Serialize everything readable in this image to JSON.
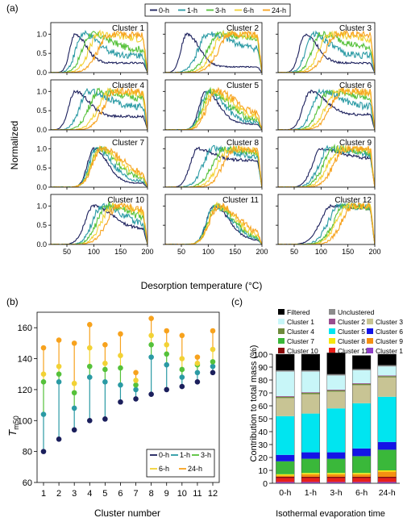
{
  "colors": {
    "0-h": "#1b1f5c",
    "1-h": "#2a9aa4",
    "3-h": "#55c13a",
    "6-h": "#f2d235",
    "24-h": "#f7a21d"
  },
  "panel_a": {
    "label": "(a)",
    "legend": [
      "0-h",
      "1-h",
      "3-h",
      "6-h",
      "24-h"
    ],
    "ylabel": "Normalized",
    "xlabel": "Desorption temperature (°C)",
    "x_ticks": [
      "50",
      "100",
      "150",
      "200"
    ],
    "y_ticks": [
      "0.0",
      "0.5",
      "1.0"
    ],
    "cluster_titles": [
      "Cluster 1",
      "Cluster 2",
      "Cluster 3",
      "Cluster 4",
      "Cluster 5",
      "Cluster 6",
      "Cluster 7",
      "Cluster 8",
      "Cluster 9",
      "Cluster 10",
      "Cluster 11",
      "Cluster 12"
    ]
  },
  "panel_b": {
    "label": "(b)",
    "ylabel_main": "T",
    "ylabel_sub": "m50",
    "xlabel": "Cluster number",
    "x_ticks": [
      "1",
      "2",
      "3",
      "4",
      "5",
      "6",
      "7",
      "8",
      "9",
      "10",
      "11",
      "12"
    ],
    "y_ticks": [
      "60",
      "80",
      "100",
      "120",
      "140",
      "160"
    ],
    "legend": [
      "0-h",
      "1-h",
      "3-h",
      "6-h",
      "24-h"
    ]
  },
  "panel_c": {
    "label": "(c)",
    "ylabel": "Contribution to total mass (%)",
    "xlabel": "Isothermal evaporation time",
    "x_ticks": [
      "0-h",
      "1-h",
      "3-h",
      "6-h",
      "24-h"
    ],
    "y_ticks": [
      "0",
      "10",
      "20",
      "30",
      "40",
      "50",
      "60",
      "70",
      "80",
      "90",
      "100"
    ],
    "legend": [
      "Filtered",
      "Unclustered",
      "Cluster 1",
      "Cluster 2",
      "Cluster 3",
      "Cluster 4",
      "Cluster 5",
      "Cluster 6",
      "Cluster 7",
      "Cluster 8",
      "Cluster 9",
      "Cluster 10",
      "Cluster 11",
      "Cluster 12"
    ]
  },
  "chart_data": [
    {
      "type": "line",
      "panel": "a",
      "description_note": "",
      "x_range": [
        20,
        200
      ],
      "ylim": [
        0,
        1.3
      ],
      "clusters": [
        {
          "name": "Cluster 1",
          "series": [
            {
              "name": "0-h",
              "peak": 65,
              "width": 18,
              "tail": 0.25
            },
            {
              "name": "1-h",
              "peak": 80,
              "width": 25,
              "tail": 0.45
            },
            {
              "name": "3-h",
              "peak": 95,
              "width": 30,
              "tail": 0.6
            },
            {
              "name": "6-h",
              "peak": 110,
              "width": 35,
              "tail": 0.85
            },
            {
              "name": "24-h",
              "peak": 130,
              "width": 40,
              "tail": 0.95
            }
          ]
        },
        {
          "name": "Cluster 2",
          "series": [
            {
              "name": "0-h",
              "peak": 60,
              "width": 20,
              "tail": 0.15
            },
            {
              "name": "1-h",
              "peak": 100,
              "width": 35,
              "tail": 0.6
            },
            {
              "name": "3-h",
              "peak": 120,
              "width": 40,
              "tail": 0.8
            },
            {
              "name": "6-h",
              "peak": 130,
              "width": 40,
              "tail": 0.9
            },
            {
              "name": "24-h",
              "peak": 140,
              "width": 40,
              "tail": 0.95
            }
          ]
        },
        {
          "name": "Cluster 3",
          "series": [
            {
              "name": "0-h",
              "peak": 70,
              "width": 20,
              "tail": 0.25
            },
            {
              "name": "1-h",
              "peak": 85,
              "width": 25,
              "tail": 0.45
            },
            {
              "name": "3-h",
              "peak": 100,
              "width": 30,
              "tail": 0.65
            },
            {
              "name": "6-h",
              "peak": 115,
              "width": 35,
              "tail": 0.85
            },
            {
              "name": "24-h",
              "peak": 130,
              "width": 40,
              "tail": 0.95
            }
          ]
        },
        {
          "name": "Cluster 4",
          "series": [
            {
              "name": "0-h",
              "peak": 65,
              "width": 22,
              "tail": 0.35
            },
            {
              "name": "1-h",
              "peak": 90,
              "width": 30,
              "tail": 0.6
            },
            {
              "name": "3-h",
              "peak": 110,
              "width": 35,
              "tail": 0.8
            },
            {
              "name": "6-h",
              "peak": 130,
              "width": 40,
              "tail": 0.9
            },
            {
              "name": "24-h",
              "peak": 140,
              "width": 40,
              "tail": 0.95
            }
          ]
        },
        {
          "name": "Cluster 5",
          "series": [
            {
              "name": "0-h",
              "peak": 95,
              "width": 22,
              "tail": 0.15
            },
            {
              "name": "1-h",
              "peak": 100,
              "width": 25,
              "tail": 0.2
            },
            {
              "name": "3-h",
              "peak": 105,
              "width": 28,
              "tail": 0.25
            },
            {
              "name": "6-h",
              "peak": 110,
              "width": 30,
              "tail": 0.3
            },
            {
              "name": "24-h",
              "peak": 115,
              "width": 32,
              "tail": 0.35
            }
          ]
        },
        {
          "name": "Cluster 6",
          "series": [
            {
              "name": "0-h",
              "peak": 80,
              "width": 25,
              "tail": 0.4
            },
            {
              "name": "1-h",
              "peak": 100,
              "width": 30,
              "tail": 0.6
            },
            {
              "name": "3-h",
              "peak": 115,
              "width": 35,
              "tail": 0.8
            },
            {
              "name": "6-h",
              "peak": 130,
              "width": 40,
              "tail": 0.9
            },
            {
              "name": "24-h",
              "peak": 140,
              "width": 40,
              "tail": 0.95
            }
          ]
        },
        {
          "name": "Cluster 7",
          "series": [
            {
              "name": "0-h",
              "peak": 100,
              "width": 22,
              "tail": 0.1
            },
            {
              "name": "1-h",
              "peak": 105,
              "width": 25,
              "tail": 0.15
            },
            {
              "name": "3-h",
              "peak": 110,
              "width": 28,
              "tail": 0.2
            },
            {
              "name": "6-h",
              "peak": 112,
              "width": 30,
              "tail": 0.25
            },
            {
              "name": "24-h",
              "peak": 115,
              "width": 32,
              "tail": 0.3
            }
          ]
        },
        {
          "name": "Cluster 8",
          "series": [
            {
              "name": "0-h",
              "peak": 80,
              "width": 25,
              "tail": 0.7
            },
            {
              "name": "1-h",
              "peak": 110,
              "width": 35,
              "tail": 0.75
            },
            {
              "name": "3-h",
              "peak": 130,
              "width": 40,
              "tail": 0.8
            },
            {
              "name": "6-h",
              "peak": 140,
              "width": 40,
              "tail": 0.85
            },
            {
              "name": "24-h",
              "peak": 150,
              "width": 40,
              "tail": 0.9
            }
          ]
        },
        {
          "name": "Cluster 9",
          "series": [
            {
              "name": "0-h",
              "peak": 100,
              "width": 30,
              "tail": 0.75
            },
            {
              "name": "1-h",
              "peak": 115,
              "width": 35,
              "tail": 0.8
            },
            {
              "name": "3-h",
              "peak": 125,
              "width": 38,
              "tail": 0.85
            },
            {
              "name": "6-h",
              "peak": 135,
              "width": 40,
              "tail": 0.9
            },
            {
              "name": "24-h",
              "peak": 145,
              "width": 40,
              "tail": 0.95
            }
          ]
        },
        {
          "name": "Cluster 10",
          "series": [
            {
              "name": "0-h",
              "peak": 100,
              "width": 30,
              "tail": 0.4
            },
            {
              "name": "1-h",
              "peak": 115,
              "width": 32,
              "tail": 0.5
            },
            {
              "name": "3-h",
              "peak": 125,
              "width": 35,
              "tail": 0.6
            },
            {
              "name": "6-h",
              "peak": 135,
              "width": 38,
              "tail": 0.7
            },
            {
              "name": "24-h",
              "peak": 145,
              "width": 40,
              "tail": 0.75
            }
          ]
        },
        {
          "name": "Cluster 11",
          "series": [
            {
              "name": "0-h",
              "peak": 110,
              "width": 25,
              "tail": 0.1
            },
            {
              "name": "1-h",
              "peak": 112,
              "width": 27,
              "tail": 0.12
            },
            {
              "name": "3-h",
              "peak": 115,
              "width": 28,
              "tail": 0.15
            },
            {
              "name": "6-h",
              "peak": 117,
              "width": 30,
              "tail": 0.18
            },
            {
              "name": "24-h",
              "peak": 120,
              "width": 32,
              "tail": 0.2
            }
          ]
        },
        {
          "name": "Cluster 12",
          "series": [
            {
              "name": "0-h",
              "peak": 120,
              "width": 40,
              "tail": 0.9
            },
            {
              "name": "1-h",
              "peak": 135,
              "width": 40,
              "tail": 0.92
            },
            {
              "name": "3-h",
              "peak": 145,
              "width": 40,
              "tail": 0.95
            },
            {
              "name": "6-h",
              "peak": 150,
              "width": 40,
              "tail": 0.96
            },
            {
              "name": "24-h",
              "peak": 160,
              "width": 40,
              "tail": 0.97
            }
          ]
        }
      ]
    },
    {
      "type": "scatter",
      "panel": "b",
      "xlabel": "Cluster number",
      "ylabel": "Tm50",
      "ylim": [
        60,
        170
      ],
      "categories": [
        1,
        2,
        3,
        4,
        5,
        6,
        7,
        8,
        9,
        10,
        11,
        12
      ],
      "series": [
        {
          "name": "0-h",
          "values": [
            80,
            88,
            94,
            100,
            101,
            112,
            114,
            117,
            120,
            122,
            125,
            131
          ]
        },
        {
          "name": "1-h",
          "values": [
            104,
            125,
            108,
            128,
            125,
            123,
            120,
            141,
            136,
            128,
            131,
            135
          ]
        },
        {
          "name": "3-h",
          "values": [
            125,
            130,
            118,
            135,
            133,
            134,
            123,
            149,
            143,
            133,
            136,
            138
          ]
        },
        {
          "name": "6-h",
          "values": [
            130,
            135,
            124,
            147,
            137,
            142,
            126,
            155,
            149,
            140,
            137,
            146
          ]
        },
        {
          "name": "24-h",
          "values": [
            147,
            152,
            150,
            162,
            149,
            156,
            131,
            166,
            158,
            155,
            141,
            158
          ]
        }
      ]
    },
    {
      "type": "bar",
      "panel": "c",
      "stacked": true,
      "categories": [
        "0-h",
        "1-h",
        "3-h",
        "6-h",
        "24-h"
      ],
      "ylim": [
        0,
        100
      ],
      "series": [
        {
          "name": "Cluster 12",
          "color": "#8e3fc7",
          "values": [
            1,
            1,
            1,
            1,
            1
          ]
        },
        {
          "name": "Cluster 11",
          "color": "#e8201a",
          "values": [
            3,
            3,
            3,
            3,
            3
          ]
        },
        {
          "name": "Cluster 10",
          "color": "#8a0b0b",
          "values": [
            1,
            1,
            1,
            1,
            1
          ]
        },
        {
          "name": "Cluster 9",
          "color": "#f58f12",
          "values": [
            1,
            2,
            2,
            2,
            4
          ]
        },
        {
          "name": "Cluster 8",
          "color": "#f5e60d",
          "values": [
            1,
            1,
            1,
            1,
            1
          ]
        },
        {
          "name": "Cluster 7",
          "color": "#3ab83a",
          "values": [
            10,
            11,
            11,
            13,
            16
          ]
        },
        {
          "name": "Cluster 6",
          "color": "#1414e6",
          "values": [
            5,
            5,
            5,
            6,
            6
          ]
        },
        {
          "name": "Cluster 5",
          "color": "#00e5f0",
          "values": [
            30,
            30,
            34,
            35,
            35
          ]
        },
        {
          "name": "Cluster 3",
          "color": "#c8c494",
          "values": [
            14,
            15,
            13,
            14,
            15
          ]
        },
        {
          "name": "Cluster 4",
          "color": "#6e8a3c",
          "values": [
            1,
            1,
            1,
            1,
            1
          ]
        },
        {
          "name": "Cluster 2",
          "color": "#9a4d8e",
          "values": [
            0.5,
            0.5,
            0.5,
            0.5,
            0.5
          ]
        },
        {
          "name": "Cluster 1",
          "color": "#c8f6f8",
          "values": [
            19,
            16,
            11,
            10,
            7
          ]
        },
        {
          "name": "Unclustered",
          "color": "#8c8c8c",
          "values": [
            1,
            1,
            1,
            1,
            1
          ]
        },
        {
          "name": "Filtered",
          "color": "#000000",
          "values": [
            12.5,
            12.5,
            16.5,
            10.5,
            8.5
          ]
        }
      ]
    }
  ]
}
